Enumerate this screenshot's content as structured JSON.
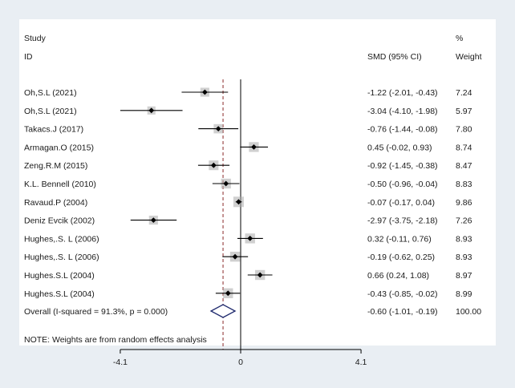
{
  "chart_data": {
    "type": "forest",
    "headers": {
      "study_top": "Study",
      "study_bottom": "ID",
      "smd": "SMD (95% CI)",
      "weight_top": "%",
      "weight_bottom": "Weight"
    },
    "studies": [
      {
        "id": "Oh,S.L  (2021)",
        "smd": -1.22,
        "lo": -2.01,
        "hi": -0.43,
        "ci_text": "-1.22 (-2.01, -0.43)",
        "weight": 7.24,
        "weight_text": "7.24"
      },
      {
        "id": "Oh,S.L  (2021)",
        "smd": -3.04,
        "lo": -4.1,
        "hi": -1.98,
        "ci_text": "-3.04 (-4.10, -1.98)",
        "weight": 5.97,
        "weight_text": "5.97"
      },
      {
        "id": "Takacs.J (2017)",
        "smd": -0.76,
        "lo": -1.44,
        "hi": -0.08,
        "ci_text": "-0.76 (-1.44, -0.08)",
        "weight": 7.8,
        "weight_text": "7.80"
      },
      {
        "id": "Armagan.O (2015)",
        "smd": 0.45,
        "lo": -0.02,
        "hi": 0.93,
        "ci_text": "0.45 (-0.02, 0.93)",
        "weight": 8.74,
        "weight_text": "8.74"
      },
      {
        "id": "Zeng.R.M (2015)",
        "smd": -0.92,
        "lo": -1.45,
        "hi": -0.38,
        "ci_text": "-0.92 (-1.45, -0.38)",
        "weight": 8.47,
        "weight_text": "8.47"
      },
      {
        "id": "K.L. Bennell (2010)",
        "smd": -0.5,
        "lo": -0.96,
        "hi": -0.04,
        "ci_text": "-0.50 (-0.96, -0.04)",
        "weight": 8.83,
        "weight_text": "8.83"
      },
      {
        "id": "Ravaud.P (2004)",
        "smd": -0.07,
        "lo": -0.17,
        "hi": 0.04,
        "ci_text": "-0.07 (-0.17, 0.04)",
        "weight": 9.86,
        "weight_text": "9.86"
      },
      {
        "id": "Deniz Evcik (2002)",
        "smd": -2.97,
        "lo": -3.75,
        "hi": -2.18,
        "ci_text": "-2.97 (-3.75, -2.18)",
        "weight": 7.26,
        "weight_text": "7.26"
      },
      {
        "id": "Hughes,.S. L (2006)",
        "smd": 0.32,
        "lo": -0.11,
        "hi": 0.76,
        "ci_text": "0.32 (-0.11, 0.76)",
        "weight": 8.93,
        "weight_text": "8.93"
      },
      {
        "id": "Hughes,.S. L (2006)",
        "smd": -0.19,
        "lo": -0.62,
        "hi": 0.25,
        "ci_text": "-0.19 (-0.62, 0.25)",
        "weight": 8.93,
        "weight_text": "8.93"
      },
      {
        "id": "Hughes.S.L (2004)",
        "smd": 0.66,
        "lo": 0.24,
        "hi": 1.08,
        "ci_text": "0.66 (0.24, 1.08)",
        "weight": 8.97,
        "weight_text": "8.97"
      },
      {
        "id": "Hughes.S.L (2004)",
        "smd": -0.43,
        "lo": -0.85,
        "hi": -0.02,
        "ci_text": "-0.43 (-0.85, -0.02)",
        "weight": 8.99,
        "weight_text": "8.99"
      }
    ],
    "overall": {
      "label": "Overall  (I-squared = 91.3%, p = 0.000)",
      "smd": -0.6,
      "lo": -1.01,
      "hi": -0.19,
      "ci_text": "-0.60 (-1.01, -0.19)",
      "weight_text": "100.00"
    },
    "note": "NOTE: Weights are from random effects analysis",
    "x_ticks": [
      {
        "value": -4.1,
        "label": "-4.1"
      },
      {
        "value": 0,
        "label": "0"
      },
      {
        "value": 4.1,
        "label": "4.1"
      }
    ],
    "xlim": [
      -4.1,
      4.1
    ],
    "colors": {
      "background": "#e9eef3",
      "panel": "#ffffff",
      "text": "#1a1a1a",
      "overall_line": "#8b2b2b",
      "overall_diamond": "#1f2a6e",
      "marker": "#000000",
      "weight_box": "#a9a9a9"
    }
  }
}
